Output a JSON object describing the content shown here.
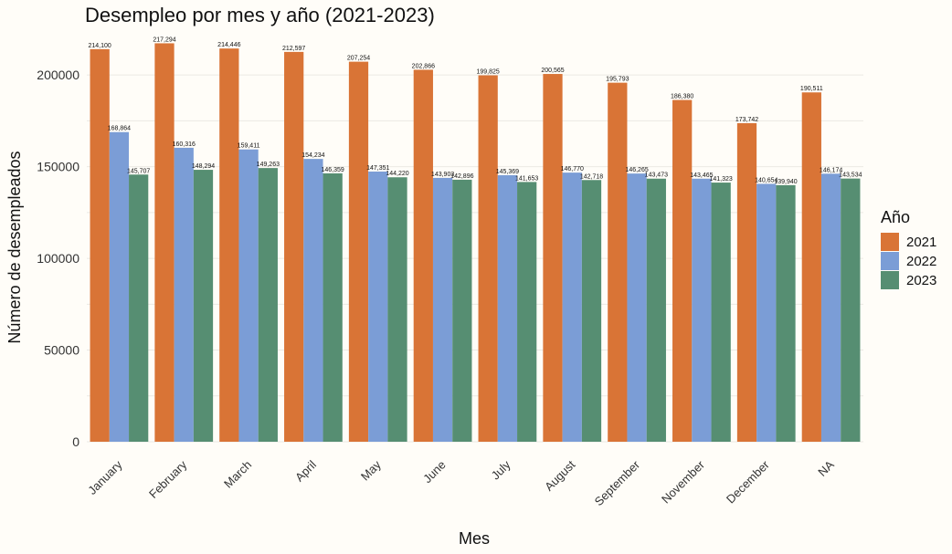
{
  "chart_data": {
    "type": "bar",
    "title": "Desempleo por mes y año (2021-2023)",
    "xlabel": "Mes",
    "ylabel": "Número de desempleados",
    "ylim": [
      0,
      220000
    ],
    "yticks": [
      0,
      50000,
      100000,
      150000,
      200000
    ],
    "ytick_labels": [
      "0",
      "50000",
      "100000",
      "150000",
      "200000"
    ],
    "categories": [
      "January",
      "February",
      "March",
      "April",
      "May",
      "June",
      "July",
      "August",
      "September",
      "November",
      "December",
      "NA"
    ],
    "legend": {
      "title": "Año",
      "position": "right"
    },
    "grid": true,
    "series": [
      {
        "name": "2021",
        "color": "#d97436",
        "values": [
          214100,
          217294,
          214446,
          212597,
          207254,
          202866,
          199825,
          200565,
          195793,
          186380,
          173742,
          190511
        ],
        "labels": [
          "214,100",
          "217,294",
          "214,446",
          "212,597",
          "207,254",
          "202,866",
          "199,825",
          "200,565",
          "195,793",
          "186,380",
          "173,742",
          "190,511"
        ]
      },
      {
        "name": "2022",
        "color": "#7b9dd6",
        "values": [
          168864,
          160316,
          159411,
          154234,
          147351,
          143903,
          145369,
          146770,
          146265,
          143465,
          140654,
          146174
        ],
        "labels": [
          "168,864",
          "160,316",
          "159,411",
          "154,234",
          "147,351",
          "143,903",
          "145,369",
          "146,770",
          "146,265",
          "143,465",
          "140,654",
          "146,174"
        ]
      },
      {
        "name": "2023",
        "color": "#568e72",
        "values": [
          145707,
          148294,
          149263,
          146359,
          144220,
          142896,
          141653,
          142718,
          143473,
          141323,
          139940,
          143534
        ],
        "labels": [
          "145,707",
          "148,294",
          "149,263",
          "146,359",
          "144,220",
          "142,896",
          "141,653",
          "142,718",
          "143,473",
          "141,323",
          "139,940",
          "143,534"
        ]
      }
    ]
  }
}
